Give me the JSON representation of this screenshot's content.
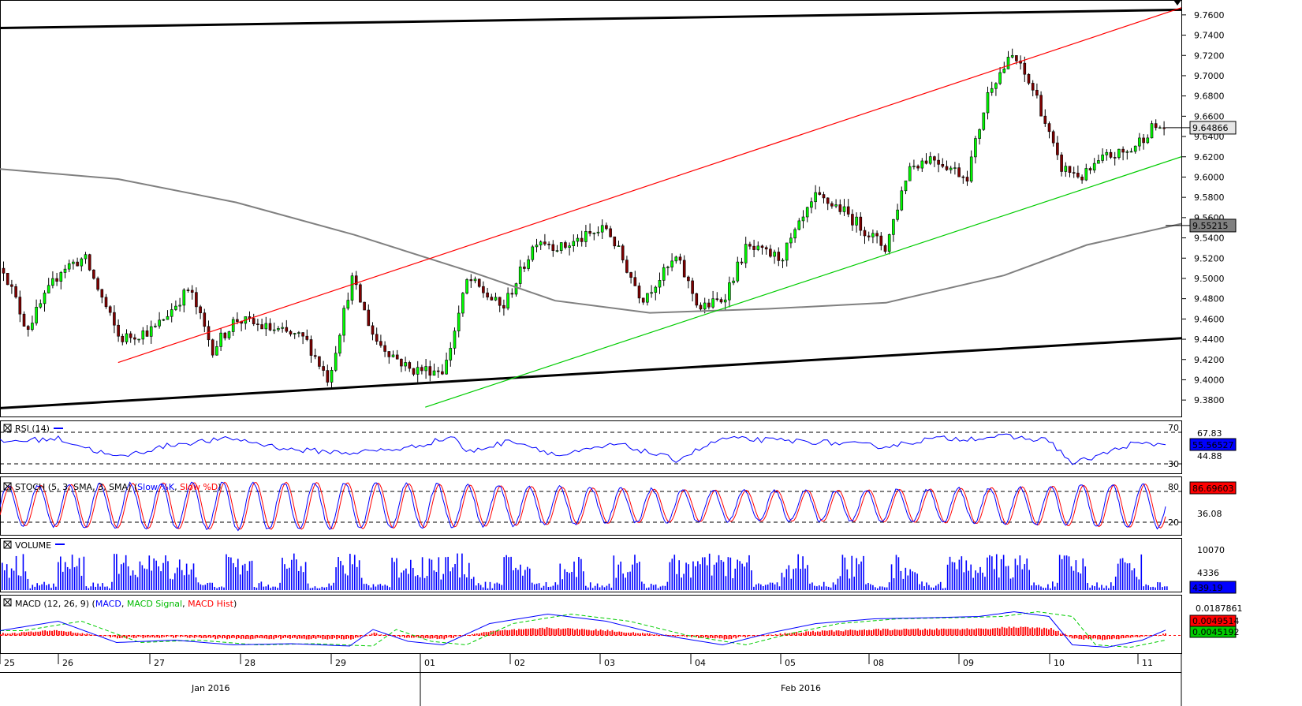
{
  "chart_data": {
    "type": "candlestick",
    "main": {
      "ylim": [
        9.37,
        9.77
      ],
      "yticks": [
        "9.7600",
        "9.7400",
        "9.7200",
        "9.7000",
        "9.6800",
        "9.6600",
        "9.6400",
        "9.6200",
        "9.6000",
        "9.5800",
        "9.5600",
        "9.5400",
        "9.5200",
        "9.5000",
        "9.4800",
        "9.4600",
        "9.4400",
        "9.4200",
        "9.4000",
        "9.3800"
      ],
      "last_price": "9.64866",
      "sma_label": "9.55215",
      "trendlines": [
        {
          "color": "#000000",
          "from": [
            0,
            9.747
          ],
          "to": [
            1,
            9.765
          ]
        },
        {
          "color": "#000000",
          "from": [
            0,
            9.372
          ],
          "to": [
            1,
            9.441
          ]
        },
        {
          "color": "#ff0000",
          "from": [
            0.1,
            9.417
          ],
          "to": [
            1,
            9.767
          ]
        },
        {
          "color": "#00cc00",
          "from": [
            0.36,
            9.373
          ],
          "to": [
            1,
            9.62
          ]
        }
      ],
      "sma_points": [
        [
          0,
          9.608
        ],
        [
          0.1,
          9.598
        ],
        [
          0.2,
          9.575
        ],
        [
          0.3,
          9.543
        ],
        [
          0.4,
          9.506
        ],
        [
          0.47,
          9.478
        ],
        [
          0.55,
          9.466
        ],
        [
          0.65,
          9.47
        ],
        [
          0.75,
          9.476
        ],
        [
          0.85,
          9.503
        ],
        [
          0.92,
          9.533
        ],
        [
          1,
          9.554
        ]
      ],
      "path_points": [
        [
          0,
          9.51
        ],
        [
          0.02,
          9.45
        ],
        [
          0.05,
          9.51
        ],
        [
          0.07,
          9.52
        ],
        [
          0.1,
          9.44
        ],
        [
          0.13,
          9.45
        ],
        [
          0.16,
          9.49
        ],
        [
          0.18,
          9.43
        ],
        [
          0.2,
          9.46
        ],
        [
          0.23,
          9.45
        ],
        [
          0.26,
          9.44
        ],
        [
          0.28,
          9.4
        ],
        [
          0.3,
          9.5
        ],
        [
          0.32,
          9.44
        ],
        [
          0.35,
          9.41
        ],
        [
          0.38,
          9.41
        ],
        [
          0.4,
          9.5
        ],
        [
          0.43,
          9.47
        ],
        [
          0.46,
          9.54
        ],
        [
          0.48,
          9.53
        ],
        [
          0.52,
          9.55
        ],
        [
          0.55,
          9.48
        ],
        [
          0.58,
          9.52
        ],
        [
          0.6,
          9.47
        ],
        [
          0.62,
          9.48
        ],
        [
          0.64,
          9.53
        ],
        [
          0.67,
          9.52
        ],
        [
          0.7,
          9.58
        ],
        [
          0.72,
          9.57
        ],
        [
          0.74,
          9.55
        ],
        [
          0.76,
          9.53
        ],
        [
          0.78,
          9.61
        ],
        [
          0.8,
          9.62
        ],
        [
          0.83,
          9.6
        ],
        [
          0.85,
          9.69
        ],
        [
          0.87,
          9.72
        ],
        [
          0.89,
          9.68
        ],
        [
          0.91,
          9.61
        ],
        [
          0.93,
          9.6
        ],
        [
          0.95,
          9.62
        ],
        [
          0.97,
          9.625
        ],
        [
          0.99,
          9.649
        ]
      ]
    },
    "rsi": {
      "label": "RSI (14)",
      "levels": [
        "70",
        "30"
      ],
      "right_labels": [
        "67.83",
        "44.88"
      ],
      "current": "55.56527",
      "points": [
        [
          0,
          58
        ],
        [
          0.05,
          62
        ],
        [
          0.1,
          38
        ],
        [
          0.15,
          55
        ],
        [
          0.2,
          62
        ],
        [
          0.25,
          48
        ],
        [
          0.3,
          44
        ],
        [
          0.35,
          50
        ],
        [
          0.39,
          65
        ],
        [
          0.4,
          44
        ],
        [
          0.44,
          60
        ],
        [
          0.48,
          40
        ],
        [
          0.53,
          55
        ],
        [
          0.58,
          35
        ],
        [
          0.62,
          62
        ],
        [
          0.66,
          60
        ],
        [
          0.7,
          58
        ],
        [
          0.73,
          55
        ],
        [
          0.76,
          52
        ],
        [
          0.8,
          62
        ],
        [
          0.83,
          62
        ],
        [
          0.86,
          65
        ],
        [
          0.88,
          62
        ],
        [
          0.9,
          60
        ],
        [
          0.92,
          30
        ],
        [
          0.95,
          44
        ],
        [
          0.97,
          55
        ],
        [
          1,
          55
        ]
      ]
    },
    "stoch": {
      "label": "STOCH (5, 3, SMA, 3, SMA)",
      "series_names": [
        "Slow %K",
        "Slow %D"
      ],
      "levels": [
        "80",
        "20"
      ],
      "right_labels": [
        "36.08"
      ],
      "current": "86.69603",
      "cycles": 38
    },
    "volume": {
      "label": "VOLUME",
      "right_labels": [
        "10070",
        "4336"
      ],
      "current": "439.19",
      "ymax": 12000
    },
    "macd": {
      "label": "MACD (12, 26, 9)",
      "series_names": [
        "MACD",
        "MACD Signal",
        "MACD Hist"
      ],
      "right_labels": [
        "0.0187861",
        "0.0049514",
        "0.0045192"
      ],
      "points": [
        [
          0,
          0.004
        ],
        [
          0.05,
          0.012
        ],
        [
          0.1,
          -0.006
        ],
        [
          0.15,
          -0.004
        ],
        [
          0.2,
          -0.008
        ],
        [
          0.25,
          -0.007
        ],
        [
          0.3,
          -0.009
        ],
        [
          0.32,
          0.005
        ],
        [
          0.35,
          -0.005
        ],
        [
          0.38,
          -0.008
        ],
        [
          0.42,
          0.01
        ],
        [
          0.47,
          0.018
        ],
        [
          0.52,
          0.012
        ],
        [
          0.57,
          0.0
        ],
        [
          0.62,
          -0.008
        ],
        [
          0.66,
          0.002
        ],
        [
          0.7,
          0.01
        ],
        [
          0.75,
          0.014
        ],
        [
          0.8,
          0.015
        ],
        [
          0.84,
          0.016
        ],
        [
          0.87,
          0.02
        ],
        [
          0.9,
          0.016
        ],
        [
          0.92,
          -0.008
        ],
        [
          0.95,
          -0.01
        ],
        [
          0.98,
          -0.004
        ],
        [
          1,
          0.0045
        ]
      ]
    },
    "x_day_labels": [
      "25",
      "26",
      "27",
      "28",
      "29",
      "01",
      "02",
      "03",
      "04",
      "05",
      "08",
      "09",
      "10",
      "11"
    ],
    "x_month_labels": [
      "Jan 2016",
      "Feb 2016"
    ]
  }
}
